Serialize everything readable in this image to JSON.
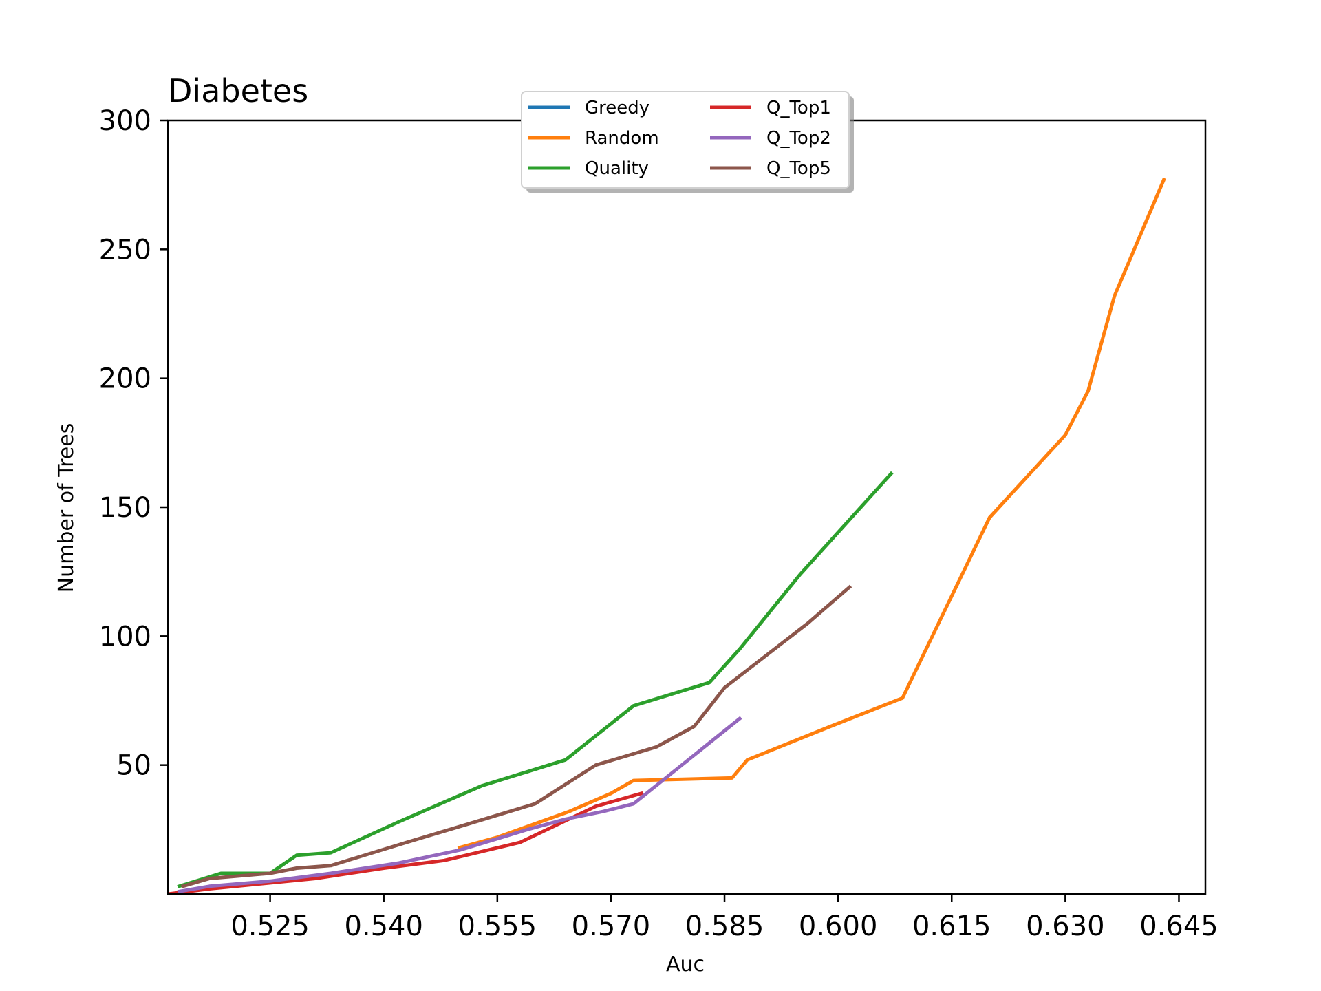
{
  "chart_data": {
    "type": "line",
    "title": "Diabetes",
    "xlabel": "Auc",
    "ylabel": "Number of Trees",
    "xlim": [
      0.5115,
      0.6485
    ],
    "ylim": [
      0,
      300
    ],
    "xticks": [
      0.525,
      0.54,
      0.555,
      0.57,
      0.585,
      0.6,
      0.615,
      0.63,
      0.645
    ],
    "xtick_labels": [
      "0.525",
      "0.540",
      "0.555",
      "0.570",
      "0.585",
      "0.600",
      "0.615",
      "0.630",
      "0.645"
    ],
    "yticks": [
      50,
      100,
      150,
      200,
      250,
      300
    ],
    "ytick_labels": [
      "50",
      "100",
      "150",
      "200",
      "250",
      "300"
    ],
    "grid": false,
    "legend_position": "upper-center",
    "legend_columns": 2,
    "series": [
      {
        "name": "Greedy",
        "color": "#1f77b4",
        "x": [],
        "y": []
      },
      {
        "name": "Random",
        "color": "#ff7f0e",
        "x": [
          0.55,
          0.555,
          0.5645,
          0.57,
          0.573,
          0.586,
          0.588,
          0.599,
          0.6085,
          0.62,
          0.63,
          0.633,
          0.6365,
          0.643
        ],
        "y": [
          18,
          22,
          32,
          39,
          44,
          45,
          52,
          65,
          76,
          146,
          178,
          195,
          232,
          277
        ]
      },
      {
        "name": "Quality",
        "color": "#2ca02c",
        "x": [
          0.513,
          0.5185,
          0.525,
          0.5285,
          0.533,
          0.542,
          0.553,
          0.564,
          0.573,
          0.583,
          0.587,
          0.595,
          0.607
        ],
        "y": [
          3,
          8,
          8,
          15,
          16,
          28,
          42,
          52,
          73,
          82,
          95,
          124,
          163
        ]
      },
      {
        "name": "Q_Top1",
        "color": "#d62728",
        "x": [
          0.5115,
          0.517,
          0.524,
          0.531,
          0.54,
          0.548,
          0.558,
          0.568,
          0.574
        ],
        "y": [
          0,
          2,
          4,
          6,
          10,
          13,
          20,
          34,
          39
        ]
      },
      {
        "name": "Q_Top2",
        "color": "#9467bd",
        "x": [
          0.513,
          0.517,
          0.525,
          0.533,
          0.542,
          0.55,
          0.559,
          0.564,
          0.569,
          0.573,
          0.587
        ],
        "y": [
          1,
          3,
          5,
          8,
          12,
          17,
          25,
          29,
          32,
          35,
          68
        ]
      },
      {
        "name": "Q_Top5",
        "color": "#8c564b",
        "x": [
          0.5135,
          0.517,
          0.525,
          0.5285,
          0.533,
          0.543,
          0.551,
          0.56,
          0.568,
          0.576,
          0.581,
          0.585,
          0.596,
          0.6015
        ],
        "y": [
          3,
          6,
          8,
          10,
          11,
          20,
          27,
          35,
          50,
          57,
          65,
          80,
          105,
          119
        ]
      }
    ]
  }
}
